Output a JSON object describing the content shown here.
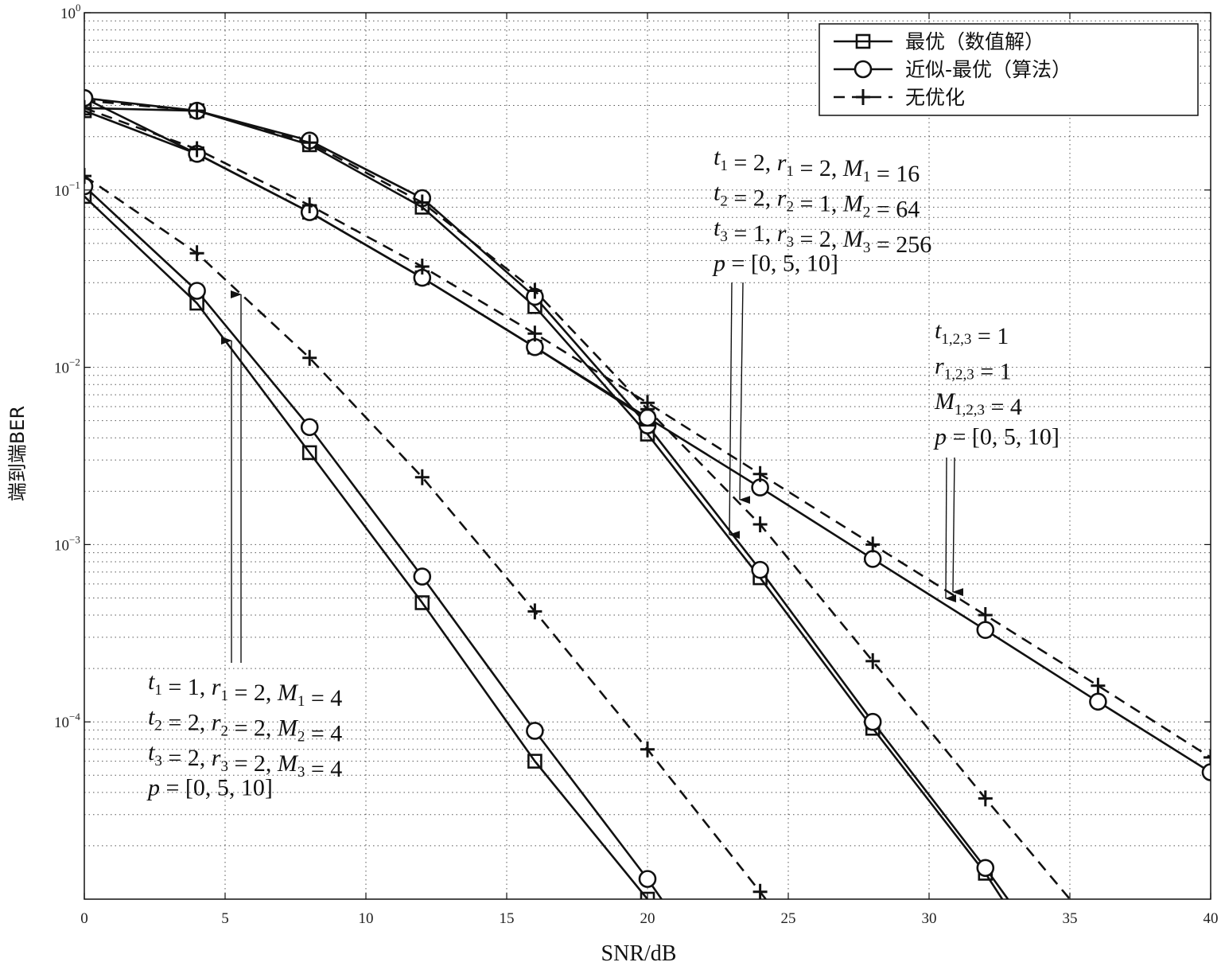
{
  "chart_data": {
    "type": "line",
    "xlabel": "SNR/dB",
    "ylabel": "端到端BER",
    "xlim": [
      0,
      40
    ],
    "ylim": [
      1e-05,
      1
    ],
    "yscale": "log",
    "grid": true,
    "x_ticks": [
      "0",
      "5",
      "10",
      "15",
      "20",
      "25",
      "30",
      "35",
      "40"
    ],
    "y_ticks": [
      {
        "base": "10",
        "exp": "0"
      },
      {
        "base": "10",
        "exp": "−1"
      },
      {
        "base": "10",
        "exp": "−2"
      },
      {
        "base": "10",
        "exp": "−3"
      },
      {
        "base": "10",
        "exp": "−4"
      }
    ],
    "legend": {
      "position": "top-right",
      "entries": [
        {
          "label": "最优（数值解）",
          "marker": "square",
          "dash": "solid"
        },
        {
          "label": "近似-最优（算法）",
          "marker": "circle",
          "dash": "solid"
        },
        {
          "label": "无优化",
          "marker": "plus",
          "dash": "dashed"
        }
      ]
    },
    "series": [
      {
        "group": "A",
        "marker": "square",
        "dash": "solid",
        "x": [
          0,
          4,
          8,
          12,
          16,
          20
        ],
        "y": [
          0.092,
          0.023,
          0.0033,
          0.00047,
          6e-05,
          1e-05
        ]
      },
      {
        "group": "A",
        "marker": "circle",
        "dash": "solid",
        "x": [
          0,
          4,
          8,
          12,
          16,
          20,
          20.5
        ],
        "y": [
          0.105,
          0.027,
          0.0046,
          0.00066,
          8.9e-05,
          1.3e-05,
          1e-05
        ]
      },
      {
        "group": "A",
        "marker": "plus",
        "dash": "dashed",
        "x": [
          0,
          4,
          8,
          12,
          16,
          20,
          24,
          24.2
        ],
        "y": [
          0.12,
          0.044,
          0.0113,
          0.0024,
          0.00042,
          7e-05,
          1.1e-05,
          1e-05
        ]
      },
      {
        "group": "B",
        "marker": "square",
        "dash": "solid",
        "x": [
          0,
          4,
          8,
          12,
          16,
          20,
          24,
          28,
          32,
          32.6
        ],
        "y": [
          0.29,
          0.28,
          0.18,
          0.08,
          0.022,
          0.0042,
          0.00065,
          9.2e-05,
          1.4e-05,
          1e-05
        ]
      },
      {
        "group": "B",
        "marker": "circle",
        "dash": "solid",
        "x": [
          0,
          4,
          8,
          12,
          16,
          20,
          24,
          28,
          32,
          32.8
        ],
        "y": [
          0.33,
          0.28,
          0.19,
          0.09,
          0.025,
          0.0047,
          0.00072,
          0.0001,
          1.5e-05,
          1e-05
        ]
      },
      {
        "group": "B",
        "marker": "plus",
        "dash": "dashed",
        "x": [
          0,
          4,
          8,
          12,
          16,
          20,
          24,
          28,
          32,
          35
        ],
        "y": [
          0.32,
          0.28,
          0.185,
          0.085,
          0.027,
          0.0058,
          0.0013,
          0.00022,
          3.7e-05,
          1e-05
        ]
      },
      {
        "group": "C",
        "marker": "square",
        "dash": "solid",
        "x": [
          0,
          4,
          8,
          12,
          16,
          20
        ],
        "y": [
          0.28,
          0.16,
          0.075,
          0.032,
          0.013,
          0.0051
        ]
      },
      {
        "group": "C",
        "marker": "circle",
        "dash": "solid",
        "x": [
          0,
          4,
          8,
          12,
          16,
          20,
          24,
          28,
          32,
          36,
          40
        ],
        "y": [
          0.33,
          0.16,
          0.075,
          0.032,
          0.013,
          0.0052,
          0.0021,
          0.00083,
          0.00033,
          0.00013,
          5.2e-05
        ]
      },
      {
        "group": "C",
        "marker": "plus",
        "dash": "dashed",
        "x": [
          0,
          4,
          8,
          12,
          16,
          20,
          24,
          28,
          32,
          36,
          40
        ],
        "y": [
          0.29,
          0.17,
          0.082,
          0.037,
          0.0155,
          0.0063,
          0.0025,
          0.001,
          0.0004,
          0.00016,
          6.3e-05
        ]
      }
    ],
    "annotations": [
      {
        "lines": [
          [
            {
              "t": "t",
              "i": true
            },
            {
              "t": "1",
              "sub": true
            },
            {
              "t": " = 2, "
            },
            {
              "t": "r",
              "i": true
            },
            {
              "t": "1",
              "sub": true
            },
            {
              "t": " = 2, "
            },
            {
              "t": "M",
              "i": true
            },
            {
              "t": "1",
              "sub": true
            },
            {
              "t": " = 16"
            }
          ],
          [
            {
              "t": "t",
              "i": true
            },
            {
              "t": "2",
              "sub": true
            },
            {
              "t": " = 2, "
            },
            {
              "t": "r",
              "i": true
            },
            {
              "t": "2",
              "sub": true
            },
            {
              "t": " = 1, "
            },
            {
              "t": "M",
              "i": true
            },
            {
              "t": "2",
              "sub": true
            },
            {
              "t": " = 64"
            }
          ],
          [
            {
              "t": "t",
              "i": true
            },
            {
              "t": "3",
              "sub": true
            },
            {
              "t": " = 1, "
            },
            {
              "t": "r",
              "i": true
            },
            {
              "t": "3",
              "sub": true
            },
            {
              "t": " = 2, "
            },
            {
              "t": "M",
              "i": true
            },
            {
              "t": "3",
              "sub": true
            },
            {
              "t": " = 256"
            }
          ],
          [
            {
              "t": "p",
              "i": true
            },
            {
              "t": " = [0, 5, 10]"
            }
          ]
        ]
      },
      {
        "lines": [
          [
            {
              "t": "t",
              "i": true
            },
            {
              "t": "1,2,3",
              "sub": true
            },
            {
              "t": " = 1"
            }
          ],
          [
            {
              "t": "r",
              "i": true
            },
            {
              "t": "1,2,3",
              "sub": true
            },
            {
              "t": " = 1"
            }
          ],
          [
            {
              "t": "M",
              "i": true
            },
            {
              "t": "1,2,3",
              "sub": true
            },
            {
              "t": " = 4"
            }
          ],
          [
            {
              "t": "p",
              "i": true
            },
            {
              "t": " = [0, 5, 10]"
            }
          ]
        ]
      },
      {
        "lines": [
          [
            {
              "t": "t",
              "i": true
            },
            {
              "t": "1",
              "sub": true
            },
            {
              "t": " = 1, "
            },
            {
              "t": "r",
              "i": true
            },
            {
              "t": "1",
              "sub": true
            },
            {
              "t": " = 2, "
            },
            {
              "t": "M",
              "i": true
            },
            {
              "t": "1",
              "sub": true
            },
            {
              "t": " = 4"
            }
          ],
          [
            {
              "t": "t",
              "i": true
            },
            {
              "t": "2",
              "sub": true
            },
            {
              "t": " = 2, "
            },
            {
              "t": "r",
              "i": true
            },
            {
              "t": "2",
              "sub": true
            },
            {
              "t": " = 2, "
            },
            {
              "t": "M",
              "i": true
            },
            {
              "t": "2",
              "sub": true
            },
            {
              "t": " = 4"
            }
          ],
          [
            {
              "t": "t",
              "i": true
            },
            {
              "t": "3",
              "sub": true
            },
            {
              "t": " = 2, "
            },
            {
              "t": "r",
              "i": true
            },
            {
              "t": "3",
              "sub": true
            },
            {
              "t": " = 2, "
            },
            {
              "t": "M",
              "i": true
            },
            {
              "t": "3",
              "sub": true
            },
            {
              "t": " = 4"
            }
          ],
          [
            {
              "t": "p",
              "i": true
            },
            {
              "t": " = [0, 5, 10]"
            }
          ]
        ]
      }
    ]
  }
}
